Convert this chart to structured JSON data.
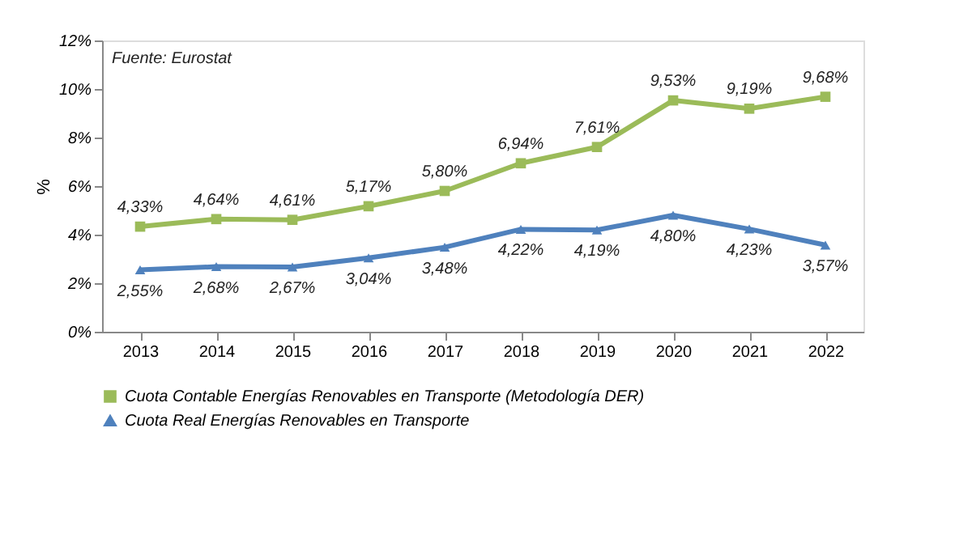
{
  "chart_data": {
    "type": "line",
    "ylabel": "%",
    "annotations": [
      "Fuente: Eurostat"
    ],
    "categories": [
      "2013",
      "2014",
      "2015",
      "2016",
      "2017",
      "2018",
      "2019",
      "2020",
      "2021",
      "2022"
    ],
    "series": [
      {
        "name": "Cuota Contable Energías Renovables en Transporte (Metodología DER)",
        "color": "#9bbb59",
        "marker": "square",
        "values": [
          4.33,
          4.64,
          4.61,
          5.17,
          5.8,
          6.94,
          7.61,
          9.53,
          9.19,
          9.68
        ],
        "value_labels": [
          "4,33%",
          "4,64%",
          "4,61%",
          "5,17%",
          "5,80%",
          "6,94%",
          "7,61%",
          "9,53%",
          "9,19%",
          "9,68%"
        ]
      },
      {
        "name": "Cuota Real Energías Renovables en Transporte",
        "color": "#4f81bd",
        "marker": "triangle",
        "values": [
          2.55,
          2.68,
          2.67,
          3.04,
          3.48,
          4.22,
          4.19,
          4.8,
          4.23,
          3.57
        ],
        "value_labels": [
          "2,55%",
          "2,68%",
          "2,67%",
          "3,04%",
          "3,48%",
          "4,22%",
          "4,19%",
          "4,80%",
          "4,23%",
          "3,57%"
        ]
      }
    ],
    "ylim": [
      0,
      12
    ],
    "yticks": [
      {
        "value": 0,
        "label": "0%"
      },
      {
        "value": 2,
        "label": "2%"
      },
      {
        "value": 4,
        "label": "4%"
      },
      {
        "value": 6,
        "label": "6%"
      },
      {
        "value": 8,
        "label": "8%"
      },
      {
        "value": 10,
        "label": "10%"
      },
      {
        "value": 12,
        "label": "12%"
      }
    ],
    "grid": false,
    "legend": "bottom",
    "line_style": "solid"
  }
}
